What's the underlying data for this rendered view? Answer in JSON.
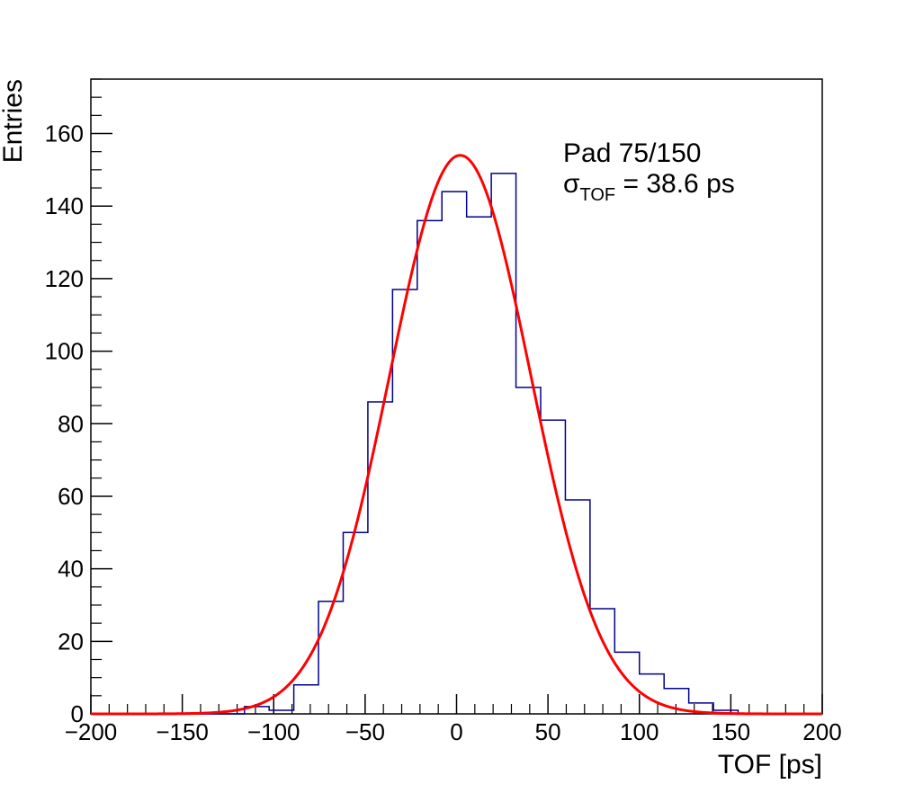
{
  "chart_data": {
    "type": "histogram",
    "xlabel": "TOF [ps]",
    "ylabel": "Entries",
    "xlim": [
      -200,
      200
    ],
    "ylim": [
      0,
      175
    ],
    "xticks": [
      -200,
      -150,
      -100,
      -50,
      0,
      50,
      100,
      150,
      200
    ],
    "xtick_labels": [
      "−200",
      "−150",
      "−100",
      "−50",
      "0",
      "50",
      "100",
      "150",
      "200"
    ],
    "yticks": [
      0,
      20,
      40,
      60,
      80,
      100,
      120,
      140,
      160
    ],
    "yminor_step": 5,
    "xminor_step": 10,
    "bin_width": 13.5,
    "bin_start": -116,
    "histogram_values": [
      2,
      1,
      8,
      31,
      50,
      86,
      117,
      136,
      144,
      137,
      149,
      90,
      81,
      59,
      29,
      17,
      11,
      7,
      3,
      1,
      0
    ],
    "fit": {
      "type": "gaussian",
      "mean": 2,
      "sigma": 38.6,
      "amplitude": 154
    },
    "annotation": {
      "line1": "Pad 75/150",
      "sigma_symbol": "σ",
      "sigma_subscript": "TOF",
      "sigma_rest": " = 38.6 ps"
    },
    "colors": {
      "histogram": "#00008b",
      "fit": "#ff0000",
      "axis": "#000000"
    },
    "grid": false
  }
}
